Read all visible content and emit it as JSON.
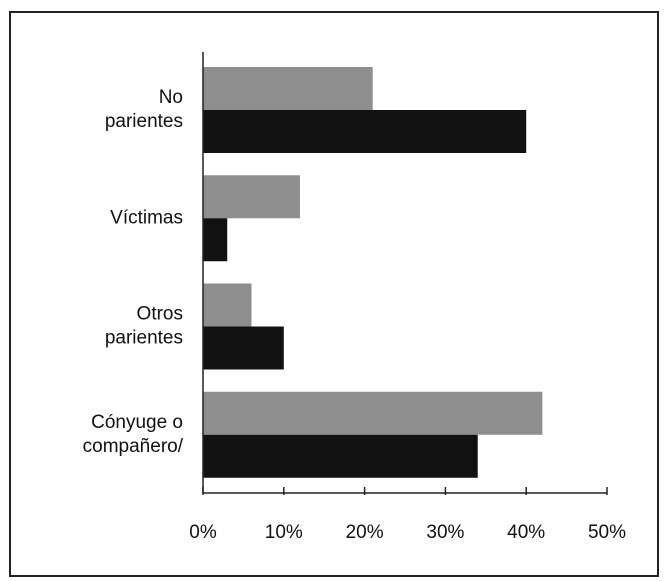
{
  "chart_data": {
    "type": "barh",
    "categories": [
      [
        "No",
        "parientes"
      ],
      [
        "Víctimas"
      ],
      [
        "Otros",
        "parientes"
      ],
      [
        "Cónyuge o",
        "compañero/"
      ]
    ],
    "series": [
      {
        "color": "#8e8e8e",
        "values": [
          21,
          12,
          6,
          42
        ]
      },
      {
        "color": "#111111",
        "values": [
          40,
          3,
          10,
          34
        ]
      }
    ],
    "xlim": [
      0,
      50
    ],
    "xticks": [
      {
        "value": 0,
        "label": "0%"
      },
      {
        "value": 10,
        "label": "10%"
      },
      {
        "value": 20,
        "label": "20%"
      },
      {
        "value": 30,
        "label": "30%"
      },
      {
        "value": 40,
        "label": "40%"
      },
      {
        "value": 50,
        "label": "50%"
      }
    ]
  }
}
